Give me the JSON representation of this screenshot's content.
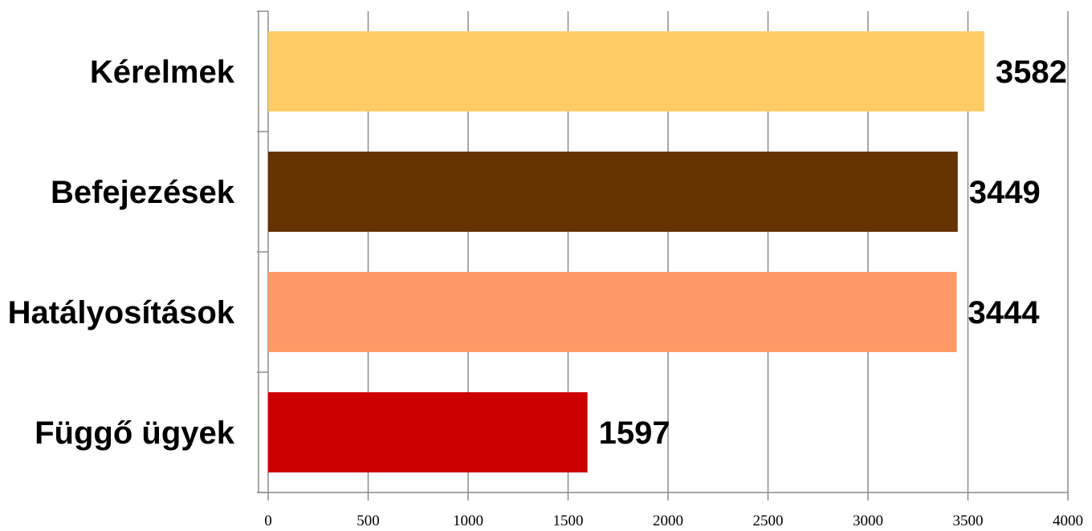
{
  "chart_data": {
    "type": "bar",
    "orientation": "horizontal",
    "categories": [
      "Kérelmek",
      "Befejezések",
      "Hatályosítások",
      "Függő ügyek"
    ],
    "values": [
      3582,
      3449,
      3444,
      1597
    ],
    "colors": [
      "#FFCC66",
      "#663300",
      "#FF9966",
      "#CC0000"
    ],
    "xlim": [
      0,
      4000
    ],
    "xticks": [
      0,
      500,
      1000,
      1500,
      2000,
      2500,
      3000,
      3500,
      4000
    ],
    "grid": true,
    "legend": "none"
  }
}
